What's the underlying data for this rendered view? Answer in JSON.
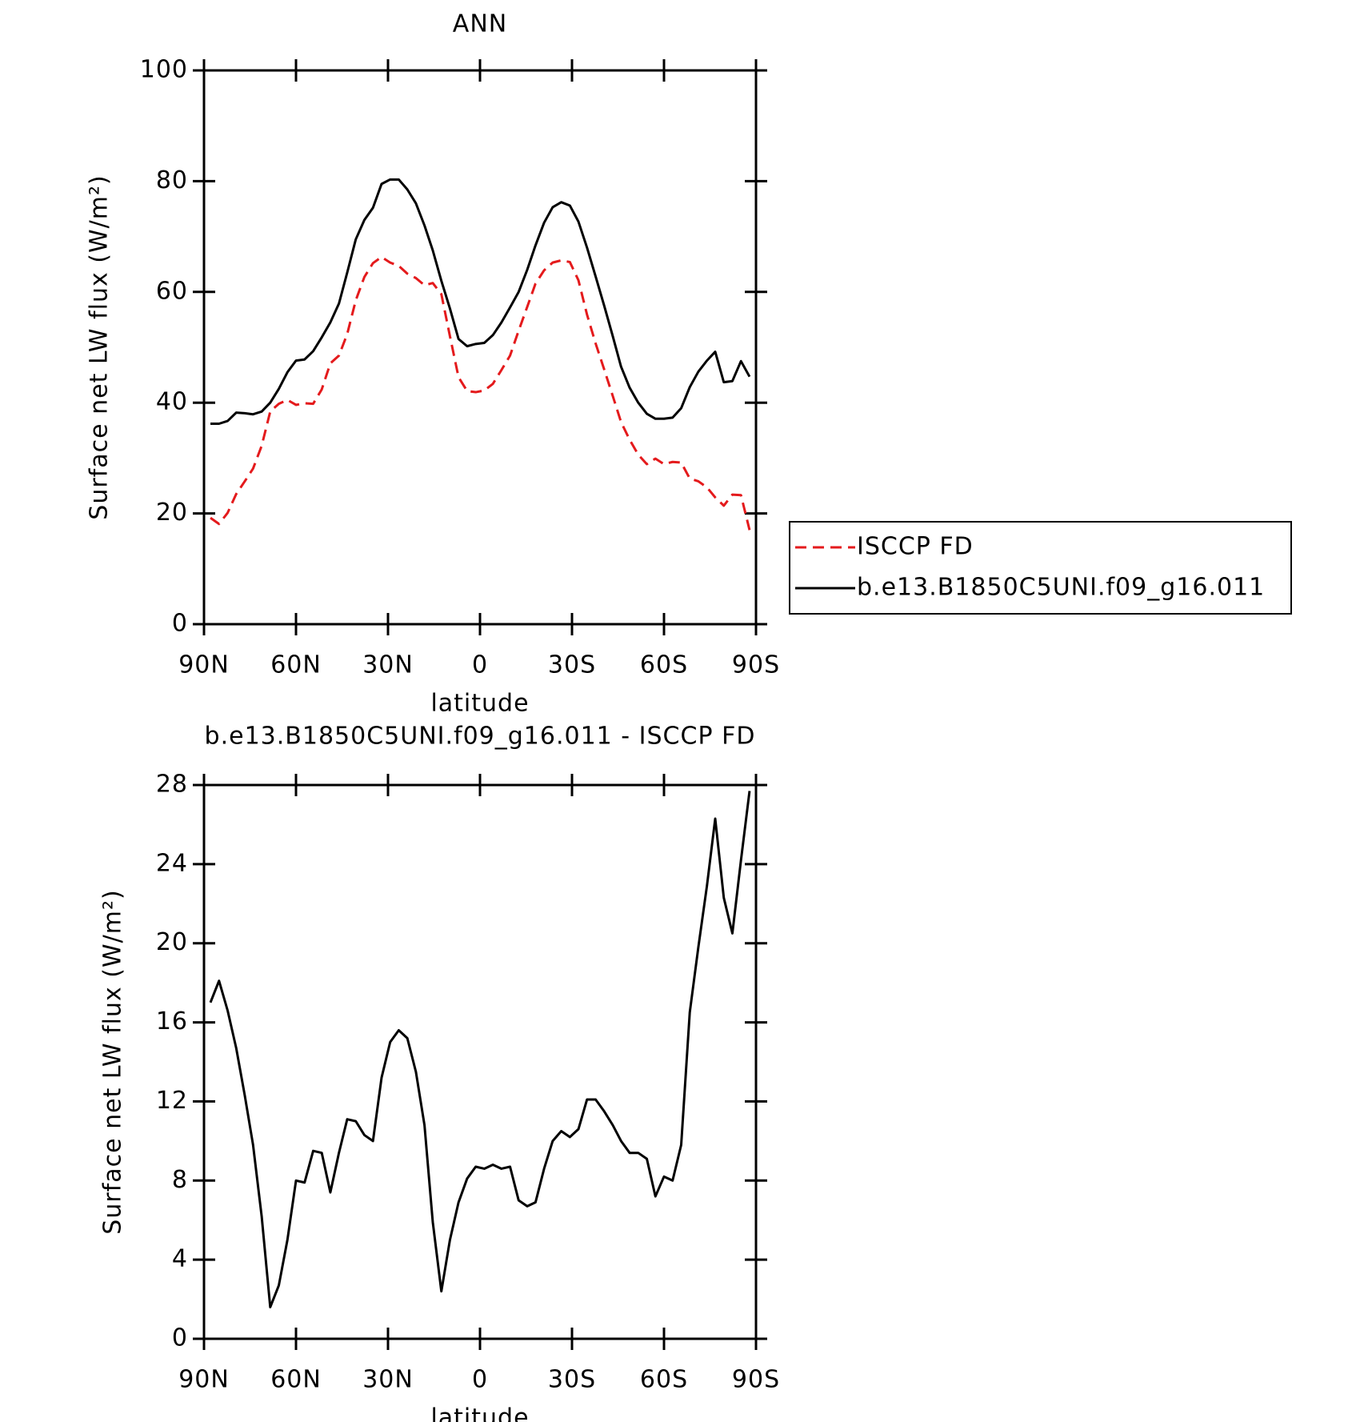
{
  "chart_data": [
    {
      "type": "line",
      "title": "ANN",
      "xlabel": "latitude",
      "ylabel": "Surface net LW flux (W/m²)",
      "x": [
        87.9,
        85.1,
        82.3,
        79.5,
        76.7,
        74.0,
        71.2,
        68.4,
        65.6,
        62.8,
        60.0,
        57.2,
        54.4,
        51.6,
        48.8,
        46.0,
        43.3,
        40.5,
        37.7,
        34.9,
        32.1,
        29.3,
        26.5,
        23.7,
        20.9,
        18.1,
        15.4,
        12.6,
        9.8,
        7.0,
        4.2,
        1.4,
        -1.4,
        -4.2,
        -7.0,
        -9.8,
        -12.6,
        -15.4,
        -18.1,
        -20.9,
        -23.7,
        -26.5,
        -29.3,
        -32.1,
        -34.9,
        -37.7,
        -40.5,
        -43.3,
        -46.0,
        -48.8,
        -51.6,
        -54.4,
        -57.2,
        -60.0,
        -62.8,
        -65.6,
        -68.4,
        -71.2,
        -74.0,
        -76.7,
        -79.5,
        -82.3,
        -85.1,
        -87.9
      ],
      "series": [
        {
          "name": "ISCCP FD",
          "color": "#e41a1c",
          "linestyle": "dashed",
          "values": [
            19.2,
            18.1,
            20.1,
            23.5,
            25.8,
            28.1,
            32.2,
            38.4,
            39.8,
            40.5,
            39.6,
            39.9,
            39.8,
            42.4,
            47.1,
            48.5,
            52.4,
            58.5,
            62.7,
            65.2,
            66.3,
            65.3,
            64.7,
            63.3,
            62.5,
            61.2,
            61.6,
            59.6,
            52.0,
            44.6,
            42.1,
            41.9,
            42.2,
            43.4,
            45.9,
            48.5,
            53.0,
            57.3,
            61.5,
            63.9,
            65.3,
            65.7,
            65.4,
            62.1,
            55.9,
            50.7,
            46.0,
            41.2,
            36.5,
            33.3,
            30.6,
            28.9,
            29.9,
            28.9,
            29.3,
            29.2,
            26.3,
            25.8,
            24.7,
            22.9,
            21.4,
            23.4,
            23.3,
            17.0
          ]
        },
        {
          "name": "b.e13.B1850C5UNI.f09_g16.011",
          "color": "#000000",
          "linestyle": "solid",
          "values": [
            36.2,
            36.2,
            36.7,
            38.2,
            38.1,
            37.9,
            38.4,
            40.0,
            42.5,
            45.5,
            47.6,
            47.8,
            49.3,
            51.8,
            54.5,
            57.9,
            63.5,
            69.5,
            73.0,
            75.2,
            79.5,
            80.3,
            80.3,
            78.5,
            76.0,
            72.0,
            67.5,
            62.0,
            57.0,
            51.5,
            50.2,
            50.6,
            50.8,
            52.2,
            54.5,
            57.2,
            60.0,
            64.0,
            68.4,
            72.5,
            75.3,
            76.2,
            75.6,
            72.7,
            68.0,
            62.8,
            57.5,
            52.0,
            46.5,
            42.7,
            40.0,
            38.0,
            37.1,
            37.1,
            37.3,
            39.0,
            42.8,
            45.6,
            47.6,
            49.2,
            43.7,
            43.9,
            47.5,
            44.7
          ]
        }
      ],
      "xlim": [
        90,
        -90
      ],
      "xticks": [
        {
          "value": 90,
          "label": "90N"
        },
        {
          "value": 60,
          "label": "60N"
        },
        {
          "value": 30,
          "label": "30N"
        },
        0,
        {
          "value": -30,
          "label": "30S"
        },
        {
          "value": -60,
          "label": "60S"
        },
        {
          "value": -90,
          "label": "90S"
        }
      ],
      "ylim": [
        0,
        100
      ],
      "yticks": [
        0,
        20,
        40,
        60,
        80,
        100
      ],
      "legend": "right",
      "grid": false
    },
    {
      "type": "line",
      "title": "b.e13.B1850C5UNI.f09_g16.011 - ISCCP FD",
      "xlabel": "latitude",
      "ylabel": "Surface net LW flux (W/m²)",
      "x": [
        87.9,
        85.1,
        82.3,
        79.5,
        76.7,
        74.0,
        71.2,
        68.4,
        65.6,
        62.8,
        60.0,
        57.2,
        54.4,
        51.6,
        48.8,
        46.0,
        43.3,
        40.5,
        37.7,
        34.9,
        32.1,
        29.3,
        26.5,
        23.7,
        20.9,
        18.1,
        15.4,
        12.6,
        9.8,
        7.0,
        4.2,
        1.4,
        -1.4,
        -4.2,
        -7.0,
        -9.8,
        -12.6,
        -15.4,
        -18.1,
        -20.9,
        -23.7,
        -26.5,
        -29.3,
        -32.1,
        -34.9,
        -37.7,
        -40.5,
        -43.3,
        -46.0,
        -48.8,
        -51.6,
        -54.4,
        -57.2,
        -60.0,
        -62.8,
        -65.6,
        -68.4,
        -71.2,
        -74.0,
        -76.7,
        -79.5,
        -82.3,
        -85.1,
        -87.9
      ],
      "series": [
        {
          "color": "#000000",
          "linestyle": "solid",
          "values": [
            17.0,
            18.1,
            16.6,
            14.7,
            12.3,
            9.8,
            6.2,
            1.6,
            2.7,
            5.0,
            8.0,
            7.9,
            9.5,
            9.4,
            7.4,
            9.4,
            11.1,
            11.0,
            10.3,
            10.0,
            13.2,
            15.0,
            15.6,
            15.2,
            13.5,
            10.8,
            5.9,
            2.4,
            5.0,
            6.9,
            8.1,
            8.7,
            8.6,
            8.8,
            8.6,
            8.7,
            7.0,
            6.7,
            6.9,
            8.6,
            10.0,
            10.5,
            10.2,
            10.6,
            12.1,
            12.1,
            11.5,
            10.8,
            10.0,
            9.4,
            9.4,
            9.1,
            7.2,
            8.2,
            8.0,
            9.8,
            16.5,
            19.8,
            22.9,
            26.3,
            22.3,
            20.5,
            24.2,
            27.7
          ]
        }
      ],
      "xlim": [
        90,
        -90
      ],
      "xticks": [
        {
          "value": 90,
          "label": "90N"
        },
        {
          "value": 60,
          "label": "60N"
        },
        {
          "value": 30,
          "label": "30N"
        },
        0,
        {
          "value": -30,
          "label": "30S"
        },
        {
          "value": -60,
          "label": "60S"
        },
        {
          "value": -90,
          "label": "90S"
        }
      ],
      "ylim": [
        0,
        28
      ],
      "yticks": [
        0,
        4,
        8,
        12,
        16,
        20,
        24,
        28
      ],
      "grid": false
    }
  ]
}
